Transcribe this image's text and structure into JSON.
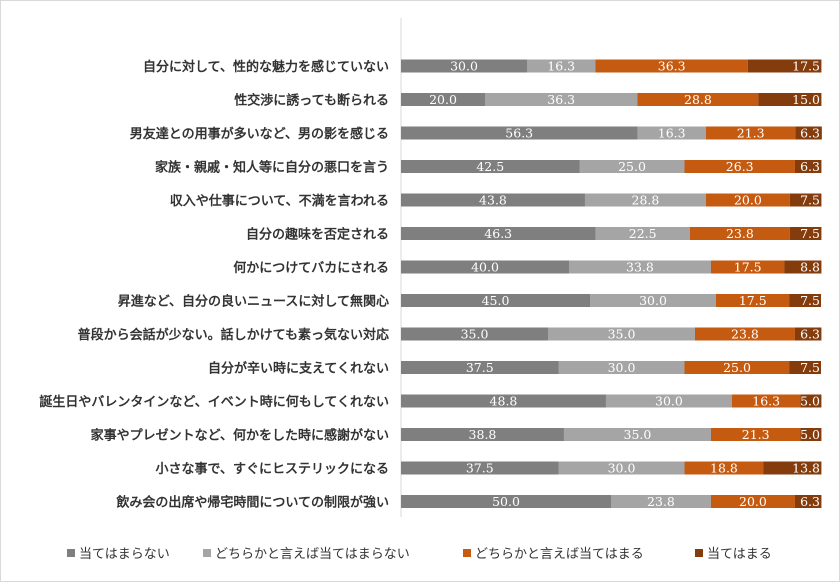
{
  "chart_data": {
    "type": "bar",
    "orientation": "horizontal",
    "stacked": true,
    "percent_stacked": true,
    "xlim": [
      0,
      100
    ],
    "grid": false,
    "legend_position": "bottom",
    "categories": [
      "自分に対して、性的な魅力を感じていない",
      "性交渉に誘っても断られる",
      "男友達との用事が多いなど、男の影を感じる",
      "家族・親戚・知人等に自分の悪口を言う",
      "収入や仕事について、不満を言われる",
      "自分の趣味を否定される",
      "何かにつけてバカにされる",
      "昇進など、自分の良いニュースに対して無関心",
      "普段から会話が少ない。話しかけても素っ気ない対応",
      "自分が辛い時に支えてくれない",
      "誕生日やバレンタインなど、イベント時に何もしてくれない",
      "家事やプレゼントなど、何かをした時に感謝がない",
      "小さな事で、すぐにヒステリックになる",
      "飲み会の出席や帰宅時間についての制限が強い"
    ],
    "series": [
      {
        "name": "当てはまらない",
        "color": "#7f7f7f",
        "values": [
          30.0,
          20.0,
          56.3,
          42.5,
          43.8,
          46.3,
          40.0,
          45.0,
          35.0,
          37.5,
          48.8,
          38.8,
          37.5,
          50.0
        ]
      },
      {
        "name": "どちらかと言えば当てはまらない",
        "color": "#a5a5a5",
        "values": [
          16.3,
          36.3,
          16.3,
          25.0,
          28.8,
          22.5,
          33.8,
          30.0,
          35.0,
          30.0,
          30.0,
          35.0,
          30.0,
          23.8
        ]
      },
      {
        "name": "どちらかと言えば当てはまる",
        "color": "#c55a11",
        "values": [
          36.3,
          28.8,
          21.3,
          26.3,
          20.0,
          23.8,
          17.5,
          17.5,
          23.8,
          25.0,
          16.3,
          21.3,
          18.8,
          20.0
        ]
      },
      {
        "name": "当てはまる",
        "color": "#843c0c",
        "values": [
          17.5,
          15.0,
          6.3,
          6.3,
          7.5,
          7.5,
          8.8,
          7.5,
          6.3,
          7.5,
          5.0,
          5.0,
          13.8,
          6.3
        ]
      }
    ]
  }
}
